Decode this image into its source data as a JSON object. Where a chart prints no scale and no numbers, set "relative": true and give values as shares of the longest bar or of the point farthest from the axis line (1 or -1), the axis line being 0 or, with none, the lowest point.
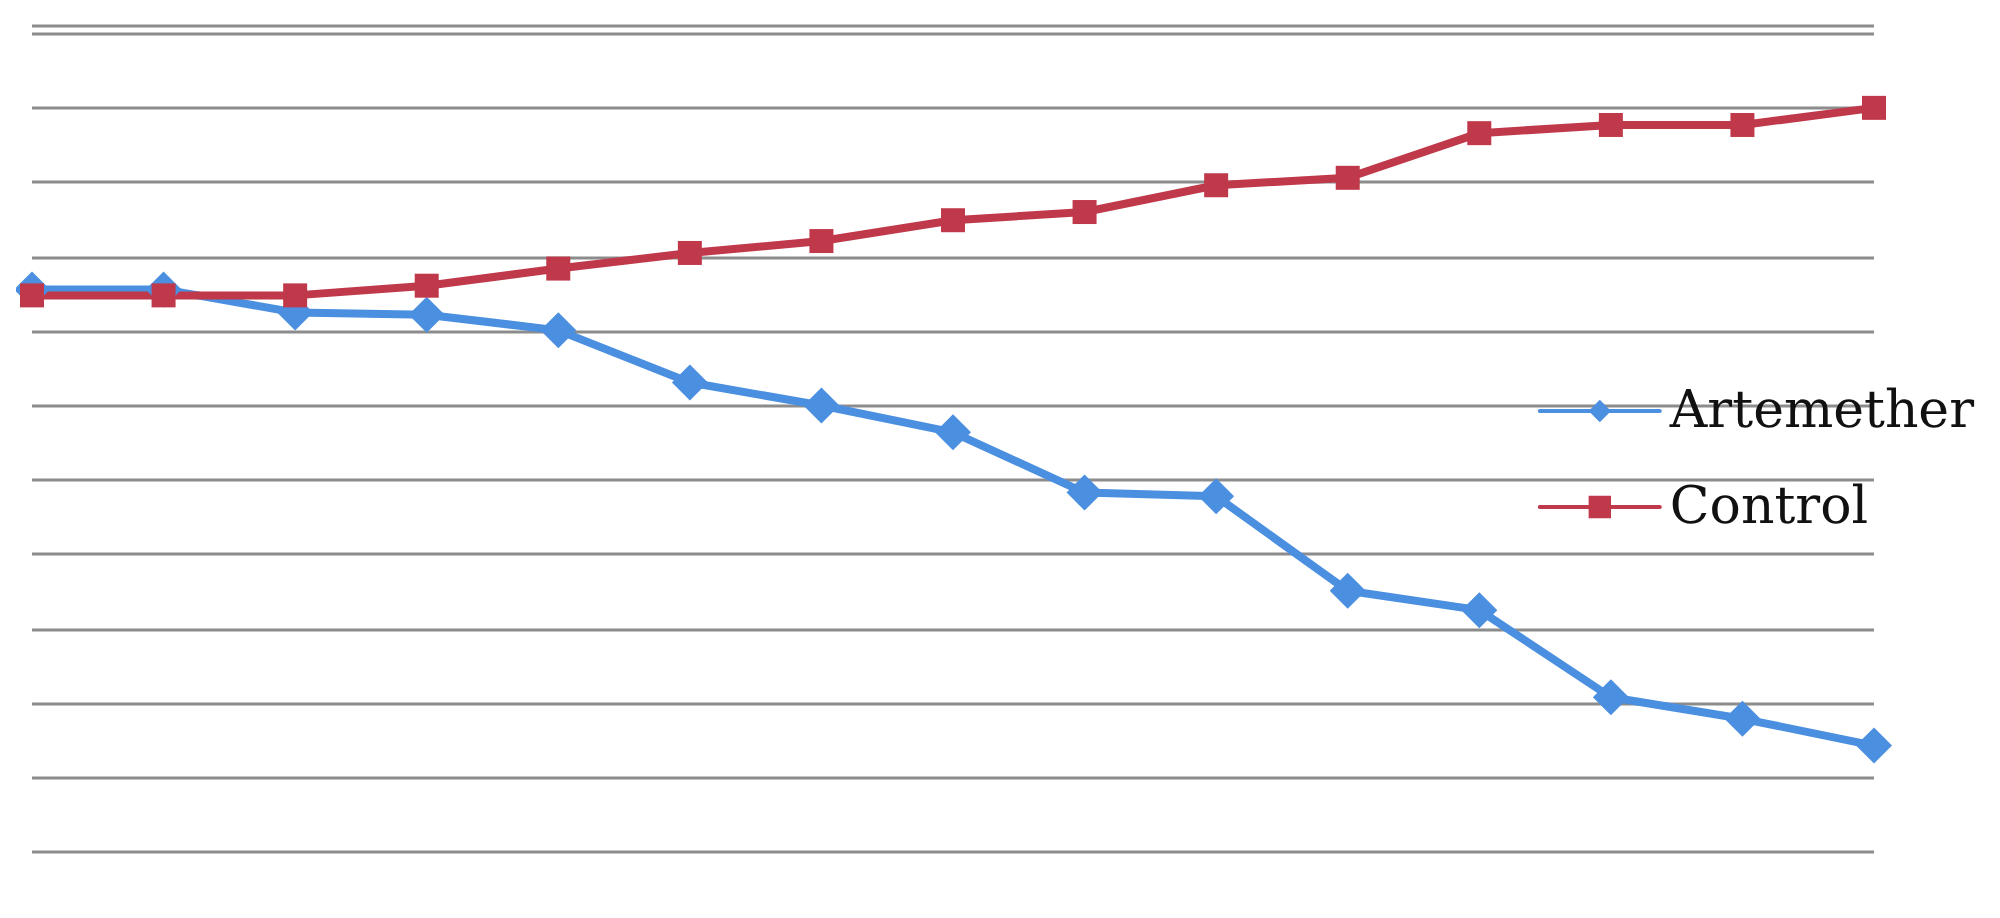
{
  "chart_data": {
    "type": "line",
    "relative": true,
    "grid": "y",
    "legend": "right",
    "categories": [
      null,
      null,
      null,
      null,
      null,
      null,
      null,
      null,
      null,
      null,
      null,
      null,
      null,
      null,
      null
    ],
    "series": [
      {
        "name": "Artemether",
        "color": "#4a8fe0",
        "marker": "diamond",
        "values": [
          0.756,
          0.756,
          0.725,
          0.722,
          0.701,
          0.631,
          0.6,
          0.564,
          0.483,
          0.478,
          0.351,
          0.325,
          0.208,
          0.179,
          0.143
        ]
      },
      {
        "name": "Control",
        "color": "#c0394b",
        "marker": "square",
        "values": [
          0.748,
          0.748,
          0.748,
          0.761,
          0.784,
          0.805,
          0.821,
          0.849,
          0.86,
          0.896,
          0.906,
          0.966,
          0.977,
          0.977,
          1
        ]
      }
    ]
  }
}
